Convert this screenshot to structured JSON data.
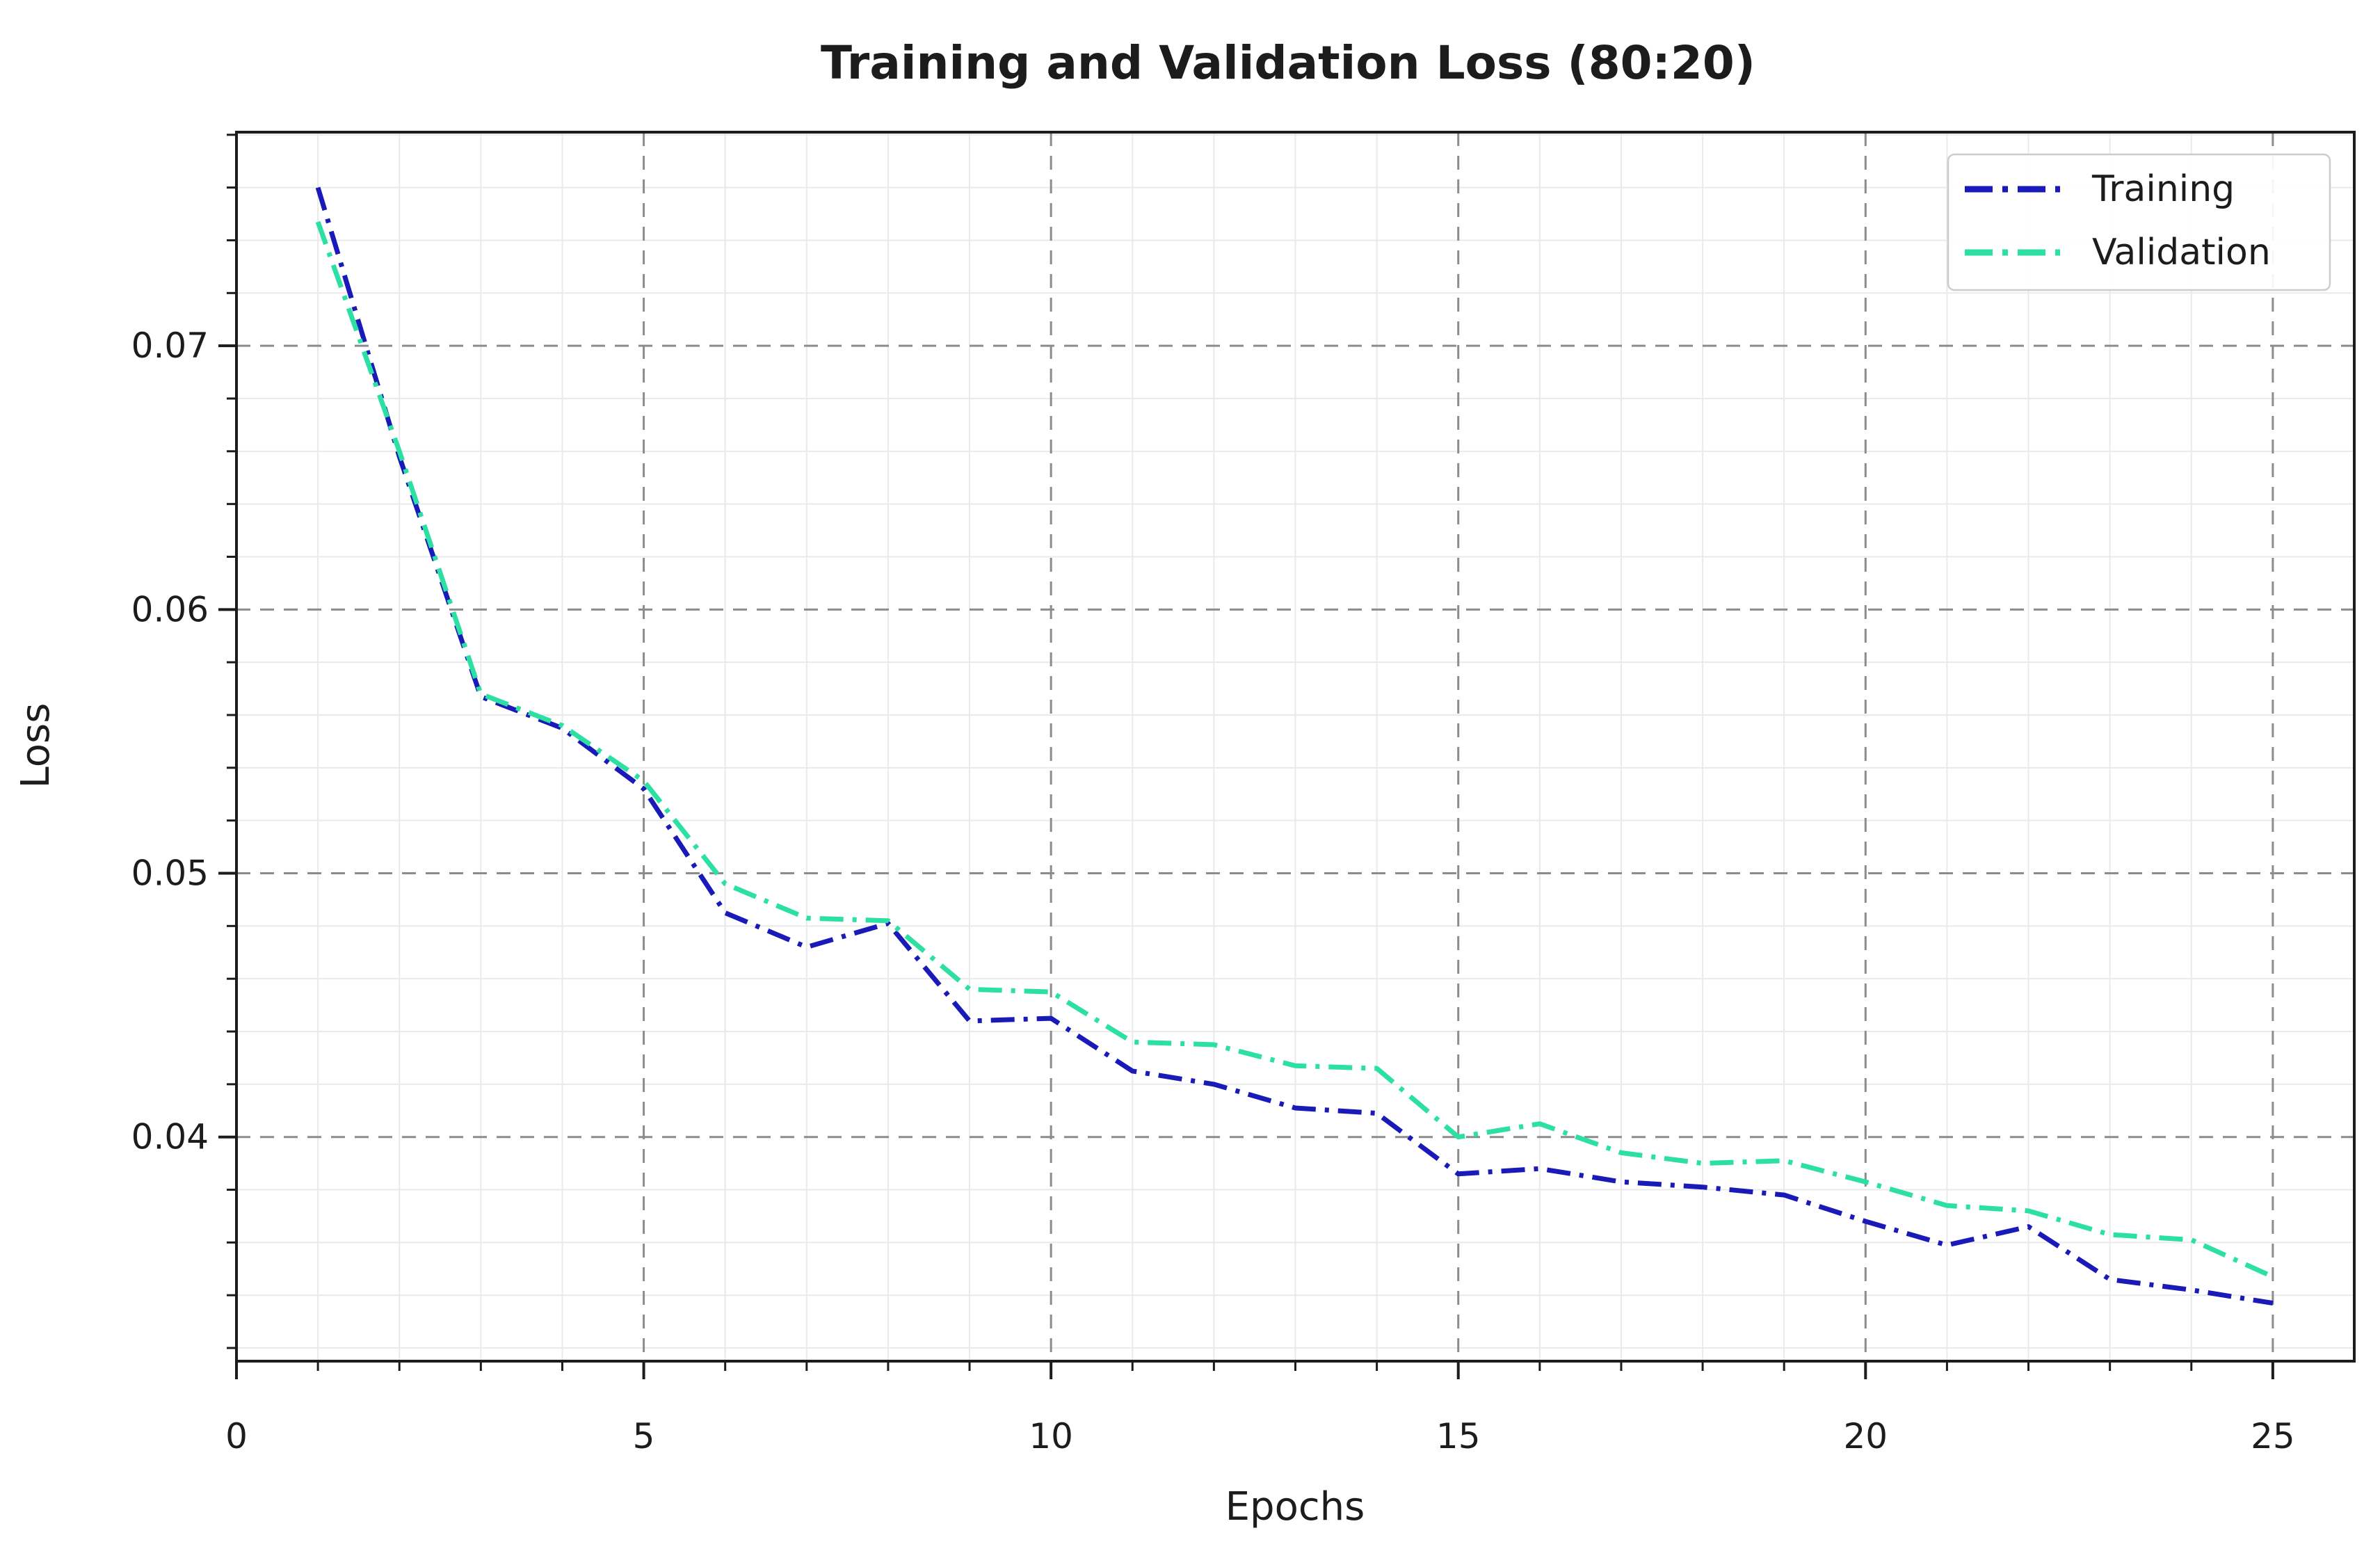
{
  "figure": {
    "background": "#ffffff"
  },
  "chart_data": {
    "type": "line",
    "title": "Training and Validation Loss (80:20)",
    "xlabel": "Epochs",
    "ylabel": "Loss",
    "x": [
      1,
      2,
      3,
      4,
      5,
      6,
      7,
      8,
      9,
      10,
      11,
      12,
      13,
      14,
      15,
      16,
      17,
      18,
      19,
      20,
      21,
      22,
      23,
      24,
      25
    ],
    "series": [
      {
        "name": "Training",
        "color": "#1a1ab8",
        "linestyle": "dashdot",
        "values": [
          0.076,
          0.0658,
          0.0567,
          0.0555,
          0.0532,
          0.0485,
          0.0472,
          0.0481,
          0.0444,
          0.0445,
          0.0425,
          0.042,
          0.0411,
          0.0409,
          0.0386,
          0.0388,
          0.0383,
          0.0381,
          0.0378,
          0.0368,
          0.0359,
          0.0366,
          0.0346,
          0.0342,
          0.0337
        ]
      },
      {
        "name": "Validation",
        "color": "#2be0a2",
        "linestyle": "dashdot",
        "values": [
          0.0747,
          0.066,
          0.0568,
          0.0556,
          0.0535,
          0.0496,
          0.0483,
          0.0482,
          0.0456,
          0.0455,
          0.0436,
          0.0435,
          0.0427,
          0.0426,
          0.04,
          0.0405,
          0.0394,
          0.039,
          0.0391,
          0.0383,
          0.0374,
          0.0372,
          0.0363,
          0.0361,
          0.0347
        ]
      }
    ],
    "xlim": [
      0,
      26.0
    ],
    "ylim": [
      0.0315,
      0.0781
    ],
    "xticks": [
      0,
      5,
      10,
      15,
      20,
      25
    ],
    "xticklabels": [
      "0",
      "5",
      "10",
      "15",
      "20",
      "25"
    ],
    "yticks": [
      0.04,
      0.05,
      0.06,
      0.07
    ],
    "yticklabels": [
      "0.04",
      "0.05",
      "0.06",
      "0.07"
    ],
    "minor_x_step": 1,
    "minor_y_step": 0.002,
    "grid": {
      "major_style": "dashed",
      "minor_style": "solid",
      "major_color": "#8c8c8c",
      "minor_color": "#eaeaea"
    },
    "legend": {
      "position": "upper right",
      "entries": [
        "Training",
        "Validation"
      ]
    }
  }
}
